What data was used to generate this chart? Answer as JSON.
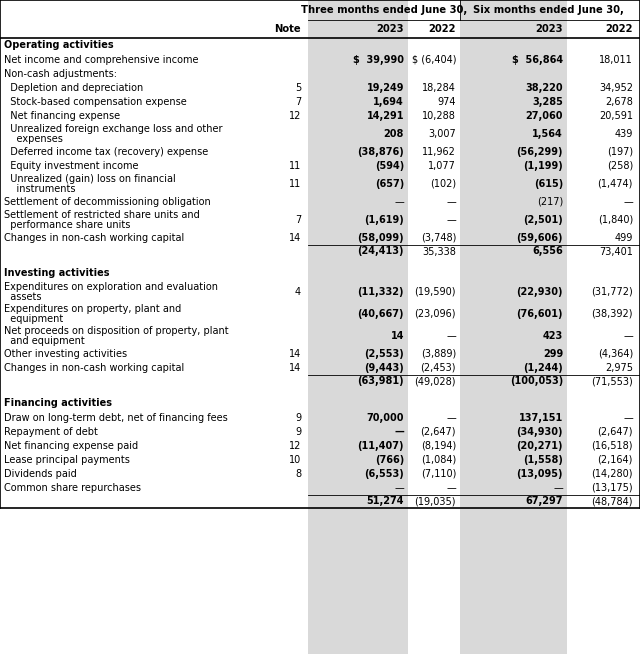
{
  "rows": [
    {
      "label": "Operating activities",
      "note": "",
      "v": [
        "",
        "",
        "",
        ""
      ],
      "type": "section_header"
    },
    {
      "label": "Net income and comprehensive income",
      "note": "",
      "v": [
        "$  39,990",
        "$ (6,404)",
        "$  56,864",
        "18,011"
      ],
      "type": "data",
      "b23": true,
      "dollar": true
    },
    {
      "label": "Non-cash adjustments:",
      "note": "",
      "v": [
        "",
        "",
        "",
        ""
      ],
      "type": "label"
    },
    {
      "label": "  Depletion and depreciation",
      "note": "5",
      "v": [
        "19,249",
        "18,284",
        "38,220",
        "34,952"
      ],
      "type": "data",
      "b23": true
    },
    {
      "label": "  Stock-based compensation expense",
      "note": "7",
      "v": [
        "1,694",
        "974",
        "3,285",
        "2,678"
      ],
      "type": "data",
      "b23": true
    },
    {
      "label": "  Net financing expense",
      "note": "12",
      "v": [
        "14,291",
        "10,288",
        "27,060",
        "20,591"
      ],
      "type": "data",
      "b23": true
    },
    {
      "label": "  Unrealized foreign exchange loss and other\n    expenses",
      "note": "",
      "v": [
        "208",
        "3,007",
        "1,564",
        "439"
      ],
      "type": "data",
      "b23": true
    },
    {
      "label": "  Deferred income tax (recovery) expense",
      "note": "",
      "v": [
        "(38,876)",
        "11,962",
        "(56,299)",
        "(197)"
      ],
      "type": "data",
      "b23": true
    },
    {
      "label": "  Equity investment income",
      "note": "11",
      "v": [
        "(594)",
        "1,077",
        "(1,199)",
        "(258)"
      ],
      "type": "data",
      "b23": true
    },
    {
      "label": "  Unrealized (gain) loss on financial\n    instruments",
      "note": "11",
      "v": [
        "(657)",
        "(102)",
        "(615)",
        "(1,474)"
      ],
      "type": "data",
      "b23": true
    },
    {
      "label": "Settlement of decommissioning obligation",
      "note": "",
      "v": [
        "—",
        "—",
        "(217)",
        "—"
      ],
      "type": "data",
      "b23": false
    },
    {
      "label": "Settlement of restricted share units and\n  performance share units",
      "note": "7",
      "v": [
        "(1,619)",
        "—",
        "(2,501)",
        "(1,840)"
      ],
      "type": "data",
      "b23": true
    },
    {
      "label": "Changes in non-cash working capital",
      "note": "14",
      "v": [
        "(58,099)",
        "(3,748)",
        "(59,606)",
        "499"
      ],
      "type": "data",
      "b23": true
    },
    {
      "label": "",
      "note": "",
      "v": [
        "(24,413)",
        "35,338",
        "6,556",
        "73,401"
      ],
      "type": "subtotal"
    },
    {
      "label": "",
      "note": "",
      "v": [
        "",
        "",
        "",
        ""
      ],
      "type": "spacer"
    },
    {
      "label": "Investing activities",
      "note": "",
      "v": [
        "",
        "",
        "",
        ""
      ],
      "type": "section_header"
    },
    {
      "label": "Expenditures on exploration and evaluation\n  assets",
      "note": "4",
      "v": [
        "(11,332)",
        "(19,590)",
        "(22,930)",
        "(31,772)"
      ],
      "type": "data",
      "b23": true
    },
    {
      "label": "Expenditures on property, plant and\n  equipment",
      "note": "",
      "v": [
        "(40,667)",
        "(23,096)",
        "(76,601)",
        "(38,392)"
      ],
      "type": "data",
      "b23": true
    },
    {
      "label": "Net proceeds on disposition of property, plant\n  and equipment",
      "note": "",
      "v": [
        "14",
        "—",
        "423",
        "—"
      ],
      "type": "data",
      "b23": true
    },
    {
      "label": "Other investing activities",
      "note": "14",
      "v": [
        "(2,553)",
        "(3,889)",
        "299",
        "(4,364)"
      ],
      "type": "data",
      "b23": true
    },
    {
      "label": "Changes in non-cash working capital",
      "note": "14",
      "v": [
        "(9,443)",
        "(2,453)",
        "(1,244)",
        "2,975"
      ],
      "type": "data",
      "b23": true
    },
    {
      "label": "",
      "note": "",
      "v": [
        "(63,981)",
        "(49,028)",
        "(100,053)",
        "(71,553)"
      ],
      "type": "subtotal"
    },
    {
      "label": "",
      "note": "",
      "v": [
        "",
        "",
        "",
        ""
      ],
      "type": "spacer"
    },
    {
      "label": "Financing activities",
      "note": "",
      "v": [
        "",
        "",
        "",
        ""
      ],
      "type": "section_header"
    },
    {
      "label": "Draw on long-term debt, net of financing fees",
      "note": "9",
      "v": [
        "70,000",
        "—",
        "137,151",
        "—"
      ],
      "type": "data",
      "b23": true
    },
    {
      "label": "Repayment of debt",
      "note": "9",
      "v": [
        "—",
        "(2,647)",
        "(34,930)",
        "(2,647)"
      ],
      "type": "data",
      "b23": true
    },
    {
      "label": "Net financing expense paid",
      "note": "12",
      "v": [
        "(11,407)",
        "(8,194)",
        "(20,271)",
        "(16,518)"
      ],
      "type": "data",
      "b23": true
    },
    {
      "label": "Lease principal payments",
      "note": "10",
      "v": [
        "(766)",
        "(1,084)",
        "(1,558)",
        "(2,164)"
      ],
      "type": "data",
      "b23": true
    },
    {
      "label": "Dividends paid",
      "note": "8",
      "v": [
        "(6,553)",
        "(7,110)",
        "(13,095)",
        "(14,280)"
      ],
      "type": "data",
      "b23": true
    },
    {
      "label": "Common share repurchases",
      "note": "",
      "v": [
        "—",
        "—",
        "—",
        "(13,175)"
      ],
      "type": "data",
      "b23": false
    },
    {
      "label": "",
      "note": "",
      "v": [
        "51,274",
        "(19,035)",
        "67,297",
        "(48,784)"
      ],
      "type": "subtotal"
    }
  ],
  "col_labels_row1": [
    "Three months ended June 30,",
    "Six months ended June 30,"
  ],
  "col_labels_row2": [
    "2023",
    "2022",
    "2023",
    "2022"
  ],
  "note_label": "Note",
  "shade_color": "#d9d9d9",
  "bg_color": "#ffffff",
  "line_color": "#000000",
  "text_color": "#000000",
  "fs": 7.0,
  "fs_header": 7.2
}
